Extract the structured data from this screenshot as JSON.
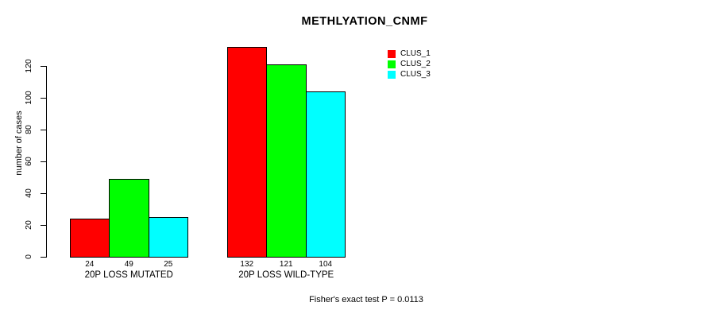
{
  "title": "METHLYATION_CNMF",
  "footer": "Fisher's exact test P = 0.0113",
  "chart_data": {
    "type": "bar",
    "title": "METHLYATION_CNMF",
    "xlabel": "",
    "ylabel": "number of cases",
    "categories": [
      "20P LOSS MUTATED",
      "20P LOSS WILD-TYPE"
    ],
    "series": [
      {
        "name": "CLUS_1",
        "color": "#ff0000",
        "values": [
          24,
          132
        ]
      },
      {
        "name": "CLUS_2",
        "color": "#00ff00",
        "values": [
          49,
          121
        ]
      },
      {
        "name": "CLUS_3",
        "color": "#00ffff",
        "values": [
          25,
          104
        ]
      }
    ],
    "bar_value_labels": [
      [
        24,
        49,
        25
      ],
      [
        132,
        121,
        104
      ]
    ],
    "yticks": [
      0,
      20,
      40,
      60,
      80,
      100,
      120
    ],
    "ylim": [
      0,
      140
    ],
    "grid": false,
    "legend_position": "top-right",
    "annotation": "Fisher's exact test P = 0.0113"
  },
  "legend": {
    "items": [
      {
        "label": "CLUS_1",
        "color": "#ff0000"
      },
      {
        "label": "CLUS_2",
        "color": "#00ff00"
      },
      {
        "label": "CLUS_3",
        "color": "#00ffff"
      }
    ]
  }
}
